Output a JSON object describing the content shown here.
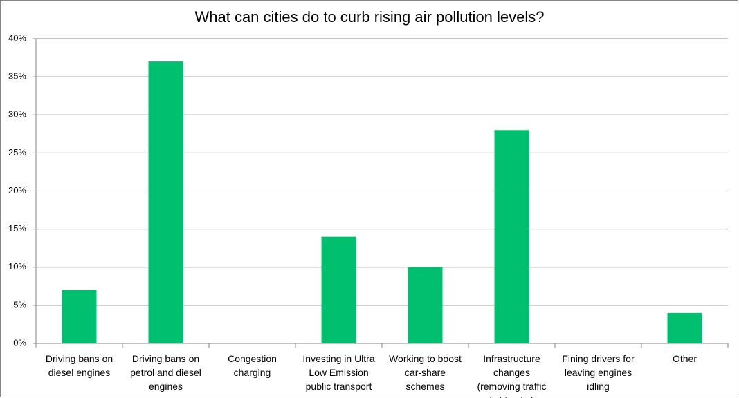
{
  "chart_data": {
    "type": "bar",
    "title": "What can cities do to curb rising air pollution levels?",
    "categories": [
      "Driving bans on diesel engines",
      "Driving bans on petrol and diesel engines",
      "Congestion charging",
      "Investing in Ultra Low Emission public transport",
      "Working to boost car-share schemes",
      "Infrastructure changes (removing traffic lights etc.)",
      "Fining drivers for leaving engines idling",
      "Other"
    ],
    "values": [
      7,
      37,
      0,
      14,
      10,
      28,
      0,
      4
    ],
    "color": "#00bf6f",
    "ylim": [
      0,
      40
    ],
    "yticks": [
      {
        "value": 0,
        "label": "0%"
      },
      {
        "value": 5,
        "label": "5%"
      },
      {
        "value": 10,
        "label": "10%"
      },
      {
        "value": 15,
        "label": "15%"
      },
      {
        "value": 20,
        "label": "20%"
      },
      {
        "value": 25,
        "label": "25%"
      },
      {
        "value": 30,
        "label": "30%"
      },
      {
        "value": 35,
        "label": "35%"
      },
      {
        "value": 40,
        "label": "40%"
      }
    ],
    "grid": true
  }
}
